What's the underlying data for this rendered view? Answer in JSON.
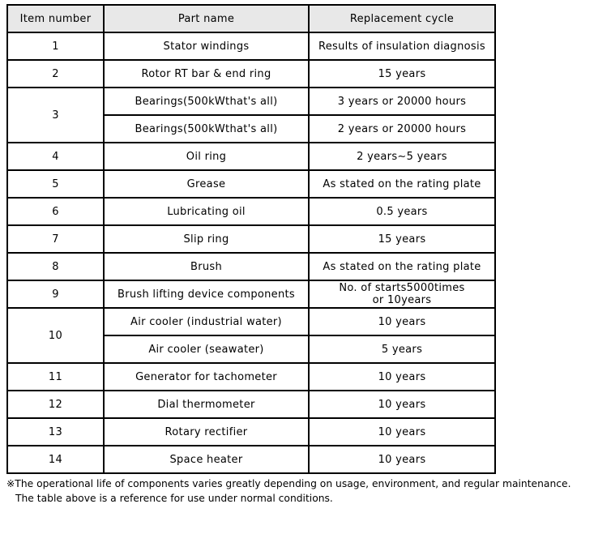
{
  "table": {
    "headers": [
      "Item number",
      "Part name",
      "Replacement cycle"
    ],
    "rows": [
      {
        "item": "1",
        "part": "Stator windings",
        "cycle": "Results of insulation diagnosis"
      },
      {
        "item": "2",
        "part": "Rotor RT bar & end ring",
        "cycle": "15 years"
      },
      {
        "item": "3",
        "part": "Bearings(500kWthat's all)",
        "cycle": "3 years or 20000 hours"
      },
      {
        "part": "Bearings(500kWthat's all)",
        "cycle": "2 years or 20000 hours"
      },
      {
        "item": "4",
        "part": "Oil ring",
        "cycle": "2 years∼5 years"
      },
      {
        "item": "5",
        "part": "Grease",
        "cycle": "As stated on the rating plate"
      },
      {
        "item": "6",
        "part": "Lubricating oil",
        "cycle": "0.5 years"
      },
      {
        "item": "7",
        "part": "Slip ring",
        "cycle": "15 years"
      },
      {
        "item": "8",
        "part": "Brush",
        "cycle": "As stated on the rating plate"
      },
      {
        "item": "9",
        "part": "Brush lifting device components",
        "cycle": "No. of starts5000times",
        "cycle2": "or 10years"
      },
      {
        "item": "10",
        "part": "Air cooler (industrial water)",
        "cycle": "10 years"
      },
      {
        "part": "Air cooler (seawater)",
        "cycle": "5 years"
      },
      {
        "item": "11",
        "part": "Generator for tachometer",
        "cycle": "10 years"
      },
      {
        "item": "12",
        "part": "Dial thermometer",
        "cycle": "10 years"
      },
      {
        "item": "13",
        "part": "Rotary rectifier",
        "cycle": "10 years"
      },
      {
        "item": "14",
        "part": "Space heater",
        "cycle": "10 years"
      }
    ]
  },
  "footnote": {
    "line1": "※The operational life of components varies greatly depending on usage, environment, and regular maintenance.",
    "line2": "The table above is a reference for use under normal conditions."
  },
  "colors": {
    "header_background": "#e8e8e8",
    "border": "#000000",
    "text": "#000000",
    "page_background": "#ffffff"
  }
}
